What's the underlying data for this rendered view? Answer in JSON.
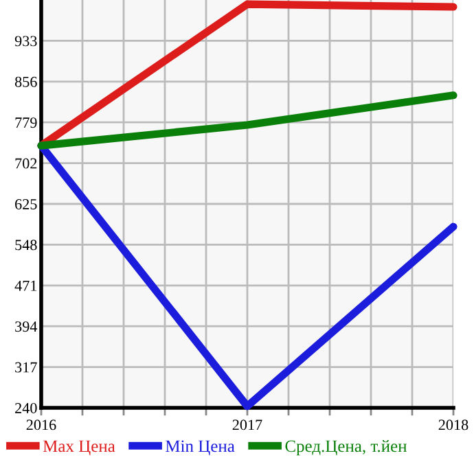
{
  "chart_data": {
    "type": "line",
    "x": [
      2016,
      2017,
      2018
    ],
    "series": [
      {
        "name": "Max Цена",
        "color": "#dd1c1c",
        "values": [
          735,
          1002,
          997
        ]
      },
      {
        "name": "Min Цена",
        "color": "#1c1cdd",
        "values": [
          735,
          243,
          582
        ]
      },
      {
        "name": "Сред.Цена, т.йен",
        "color": "#0a800a",
        "values": [
          735,
          774,
          830
        ]
      }
    ],
    "xlim": [
      2016,
      2018
    ],
    "xticks": [
      2016,
      {
        "value": 2016.2,
        "label": null
      },
      {
        "value": 2016.4,
        "label": null
      },
      {
        "value": 2016.6,
        "label": null
      },
      {
        "value": 2016.8,
        "label": null
      },
      2017,
      {
        "value": 2017.2,
        "label": null
      },
      {
        "value": 2017.4,
        "label": null
      },
      {
        "value": 2017.6,
        "label": null
      },
      {
        "value": 2017.8,
        "label": null
      },
      2018
    ],
    "ylim": [
      240,
      1010
    ],
    "yticks": [
      240,
      317,
      394,
      471,
      548,
      625,
      702,
      779,
      856,
      933
    ],
    "grid": true,
    "legend": "bottom",
    "marker": "none",
    "line_style": "solid"
  }
}
